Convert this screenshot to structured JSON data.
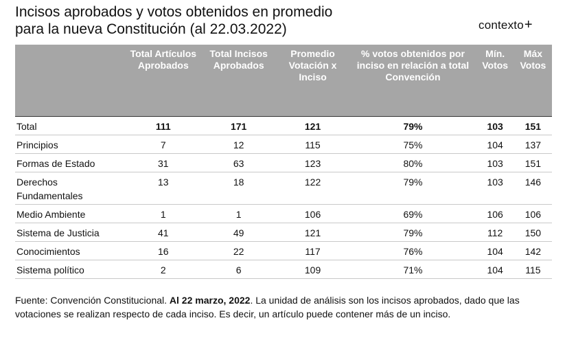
{
  "title": {
    "line1": "Incisos aprobados y votos obtenidos en promedio",
    "line2": "para la nueva Constitución (al 22.03.2022)"
  },
  "logo": {
    "text": "contexto",
    "mark": "+"
  },
  "table": {
    "headers": [
      "",
      "Total Artículos Aprobados",
      "Total Incisos Aprobados",
      "Promedio Votación x Inciso",
      "% votos obtenidos por inciso en relación a total Convención",
      "Mín. Votos",
      "Máx Votos"
    ],
    "rows": [
      [
        "Total",
        "111",
        "171",
        "121",
        "79%",
        "103",
        "151"
      ],
      [
        "Principios",
        "7",
        "12",
        "115",
        "75%",
        "104",
        "137"
      ],
      [
        "Formas de Estado",
        "31",
        "63",
        "123",
        "80%",
        "103",
        "151"
      ],
      [
        "Derechos Fundamentales",
        "13",
        "18",
        "122",
        "79%",
        "103",
        "146"
      ],
      [
        "Medio Ambiente",
        "1",
        "1",
        "106",
        "69%",
        "106",
        "106"
      ],
      [
        "Sistema de Justicia",
        "41",
        "49",
        "121",
        "79%",
        "112",
        "150"
      ],
      [
        "Conocimientos",
        "16",
        "22",
        "117",
        "76%",
        "104",
        "142"
      ],
      [
        "Sistema político",
        "2",
        "6",
        "109",
        "71%",
        "104",
        "115"
      ]
    ]
  },
  "footer": {
    "part1": "Fuente: Convención Constitucional. ",
    "bold": "Al 22 marzo, 2022",
    "part2": ". La unidad de análisis son los incisos aprobados, dado que las votaciones se realizan respecto de cada inciso. Es decir, un artículo puede contener más de un inciso."
  }
}
